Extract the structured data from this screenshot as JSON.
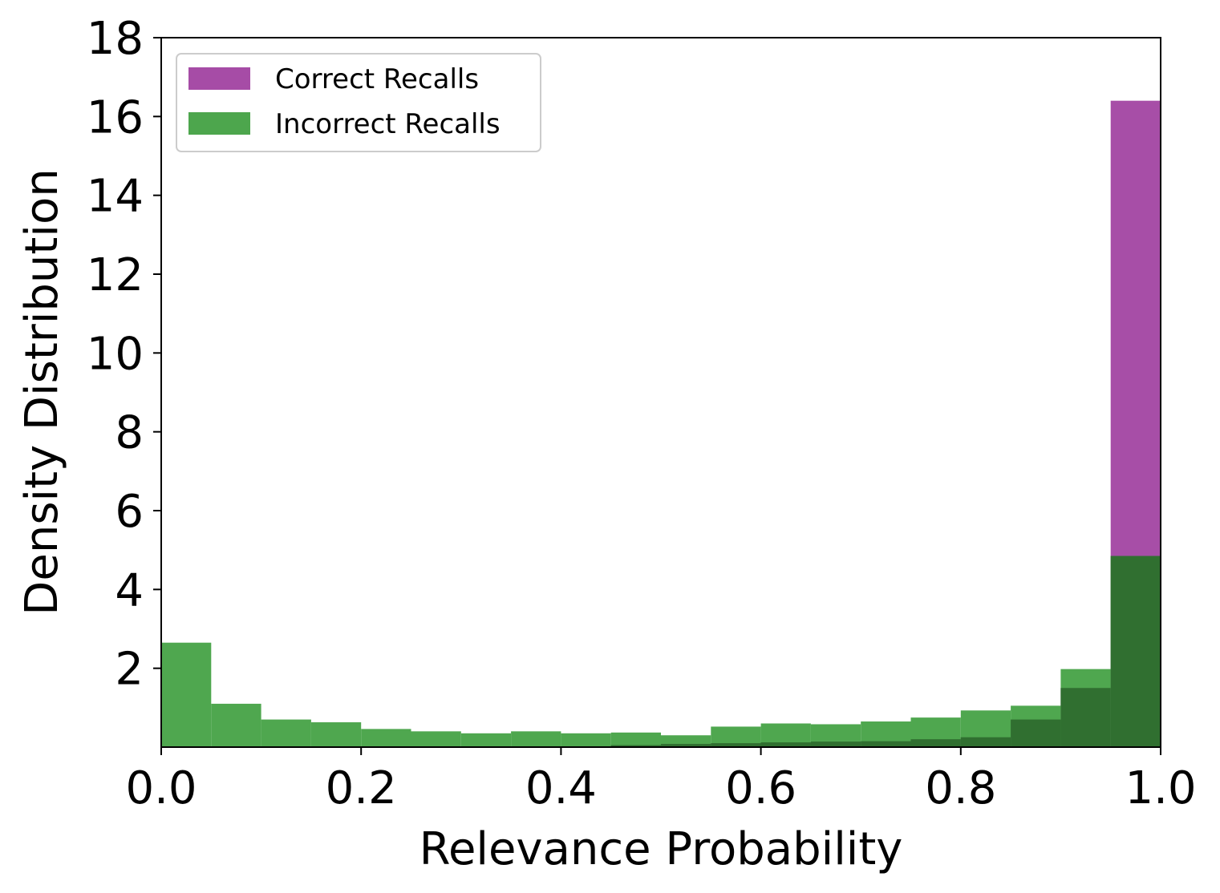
{
  "chart_data": {
    "type": "bar",
    "subtype": "overlaid-histogram",
    "title": "",
    "xlabel": "Relevance Probability",
    "ylabel": "Density Distribution",
    "xlim": [
      0.0,
      1.0
    ],
    "ylim": [
      0,
      18
    ],
    "xticks": [
      "0.0",
      "0.2",
      "0.4",
      "0.6",
      "0.8",
      "1.0"
    ],
    "yticks": [
      "2",
      "4",
      "6",
      "8",
      "10",
      "12",
      "14",
      "16",
      "18"
    ],
    "bin_edges": [
      0.0,
      0.05,
      0.1,
      0.15,
      0.2,
      0.25,
      0.3,
      0.35,
      0.4,
      0.45,
      0.5,
      0.55,
      0.6,
      0.65,
      0.7,
      0.75,
      0.8,
      0.85,
      0.9,
      0.95,
      1.0
    ],
    "grid": false,
    "legend_position": "upper-left",
    "series": [
      {
        "name": "Correct Recalls",
        "color": "#a64ca6",
        "values": [
          0.0,
          0.0,
          0.0,
          0.0,
          0.0,
          0.0,
          0.0,
          0.0,
          0.0,
          0.05,
          0.08,
          0.1,
          0.12,
          0.14,
          0.15,
          0.2,
          0.25,
          0.7,
          1.5,
          16.4
        ]
      },
      {
        "name": "Incorrect Recalls",
        "color": "#4da64d",
        "values": [
          2.65,
          1.1,
          0.7,
          0.63,
          0.46,
          0.4,
          0.35,
          0.4,
          0.35,
          0.37,
          0.3,
          0.52,
          0.6,
          0.58,
          0.65,
          0.75,
          0.93,
          1.05,
          1.98,
          4.85
        ]
      }
    ]
  }
}
